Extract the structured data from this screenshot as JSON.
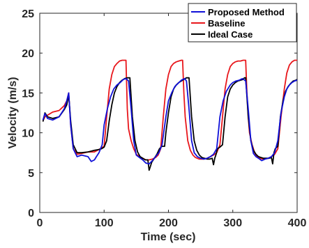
{
  "chart_data": {
    "type": "line",
    "title": "",
    "xlabel": "Time (sec)",
    "ylabel": "Velocity (m/s)",
    "xlim": [
      0,
      400
    ],
    "ylim": [
      0,
      25
    ],
    "xticks": [
      "0",
      "100",
      "200",
      "300",
      "400"
    ],
    "yticks": [
      "0",
      "5",
      "10",
      "15",
      "20",
      "25"
    ],
    "grid": false,
    "legend_position": "top-right",
    "series": [
      {
        "name": "Proposed Method",
        "color": "#1010d8",
        "x": [
          5,
          8,
          12,
          20,
          30,
          38,
          42,
          45,
          48,
          52,
          58,
          65,
          75,
          80,
          85,
          88,
          92,
          97,
          100,
          105,
          110,
          115,
          120,
          125,
          130,
          134,
          138,
          142,
          146,
          150,
          155,
          160,
          165,
          170,
          175,
          180,
          185,
          190,
          196,
          200,
          205,
          210,
          215,
          220,
          225,
          228,
          232,
          236,
          240,
          245,
          250,
          255,
          260,
          265,
          270,
          275,
          280,
          285,
          290,
          296,
          300,
          305,
          310,
          315,
          320,
          324,
          328,
          332,
          336,
          340,
          345,
          350,
          355,
          360,
          365,
          370,
          375,
          380,
          384,
          388,
          392,
          396,
          400
        ],
        "y": [
          11.6,
          12.4,
          11.8,
          11.6,
          12.0,
          13.0,
          14.0,
          15.0,
          11.0,
          8.0,
          7.0,
          7.2,
          7.0,
          6.4,
          6.6,
          7.0,
          7.5,
          8.5,
          11.0,
          13.0,
          14.5,
          15.5,
          16.0,
          16.3,
          16.7,
          16.8,
          16.5,
          13.0,
          9.0,
          7.2,
          6.9,
          6.6,
          6.2,
          6.1,
          6.5,
          7.0,
          7.5,
          8.5,
          12.0,
          14.0,
          15.0,
          15.8,
          16.2,
          16.6,
          16.8,
          16.5,
          13.0,
          9.0,
          7.5,
          7.0,
          6.8,
          6.7,
          6.8,
          7.0,
          7.3,
          8.0,
          12.0,
          14.0,
          15.2,
          16.0,
          16.3,
          16.5,
          16.6,
          16.8,
          16.5,
          13.0,
          9.0,
          7.4,
          7.0,
          6.8,
          6.5,
          6.7,
          6.8,
          7.0,
          7.5,
          9.0,
          12.5,
          14.5,
          15.5,
          16.0,
          16.3,
          16.5,
          16.6
        ]
      },
      {
        "name": "Baseline",
        "color": "#e8161b",
        "x": [
          5,
          8,
          12,
          20,
          30,
          38,
          42,
          45,
          48,
          52,
          58,
          65,
          75,
          85,
          92,
          96,
          100,
          104,
          108,
          112,
          116,
          120,
          124,
          128,
          132,
          134,
          136,
          138,
          142,
          146,
          150,
          155,
          160,
          165,
          170,
          175,
          180,
          184,
          188,
          192,
          196,
          200,
          204,
          208,
          212,
          216,
          220,
          222,
          224,
          226,
          230,
          234,
          238,
          242,
          248,
          255,
          260,
          265,
          270,
          275,
          280,
          284,
          288,
          292,
          296,
          300,
          304,
          308,
          312,
          316,
          320,
          322,
          324,
          326,
          330,
          334,
          338,
          342,
          348,
          355,
          360,
          365,
          370,
          375,
          380,
          384,
          388,
          392,
          396,
          400
        ],
        "y": [
          11.5,
          12.0,
          12.2,
          12.6,
          12.8,
          13.4,
          14.0,
          15.0,
          11.0,
          8.0,
          7.3,
          7.4,
          7.6,
          7.6,
          7.9,
          8.1,
          8.3,
          12.0,
          15.5,
          17.3,
          18.3,
          18.7,
          19.0,
          19.1,
          19.1,
          19.1,
          13.0,
          10.5,
          9.0,
          8.0,
          7.3,
          7.0,
          6.8,
          6.6,
          6.6,
          6.7,
          6.9,
          7.2,
          8.0,
          12.0,
          15.5,
          17.3,
          18.3,
          18.7,
          18.9,
          19.0,
          19.1,
          19.1,
          15.0,
          12.0,
          9.0,
          7.8,
          7.2,
          6.9,
          6.7,
          6.7,
          6.8,
          7.0,
          7.2,
          7.5,
          8.5,
          12.0,
          15.5,
          17.3,
          18.3,
          18.7,
          18.9,
          19.0,
          19.0,
          19.1,
          19.1,
          15.0,
          12.0,
          10.0,
          8.5,
          7.5,
          7.0,
          6.8,
          6.7,
          6.8,
          7.0,
          7.3,
          8.0,
          12.0,
          15.5,
          17.5,
          18.5,
          18.9,
          19.1,
          19.1
        ]
      },
      {
        "name": "Ideal Case",
        "color": "#000000",
        "x": [
          5,
          8,
          12,
          20,
          30,
          38,
          42,
          45,
          48,
          52,
          58,
          65,
          75,
          85,
          92,
          96,
          100,
          104,
          108,
          112,
          116,
          120,
          124,
          128,
          132,
          136,
          140,
          144,
          148,
          152,
          156,
          160,
          164,
          168,
          170,
          172,
          174,
          178,
          182,
          186,
          190,
          194,
          196,
          200,
          204,
          208,
          212,
          216,
          220,
          224,
          228,
          232,
          236,
          240,
          244,
          248,
          252,
          256,
          260,
          264,
          268,
          270,
          272,
          274,
          276,
          280,
          284,
          288,
          292,
          296,
          300,
          304,
          308,
          312,
          316,
          318,
          320,
          324,
          328,
          332,
          336,
          340,
          344,
          348,
          352,
          356,
          360,
          362,
          364,
          366,
          370,
          374,
          378,
          382,
          386,
          390,
          394,
          398,
          400
        ],
        "y": [
          11.4,
          12.5,
          12.0,
          11.8,
          12.0,
          12.9,
          13.5,
          14.8,
          11.5,
          8.5,
          7.5,
          7.5,
          7.6,
          7.8,
          7.9,
          8.0,
          8.2,
          9.0,
          11.5,
          13.5,
          15.0,
          15.8,
          16.3,
          16.6,
          16.8,
          16.9,
          16.9,
          12.0,
          9.0,
          7.6,
          7.0,
          6.8,
          6.6,
          6.6,
          5.3,
          5.8,
          6.3,
          6.8,
          7.3,
          8.0,
          8.3,
          8.3,
          10.0,
          12.5,
          14.5,
          15.5,
          16.0,
          16.3,
          16.5,
          16.7,
          16.9,
          16.9,
          12.0,
          9.0,
          7.8,
          7.2,
          6.9,
          6.8,
          6.7,
          6.7,
          6.8,
          6.0,
          6.8,
          7.3,
          8.0,
          8.2,
          8.5,
          12.0,
          14.5,
          15.5,
          16.0,
          16.3,
          16.5,
          16.6,
          16.7,
          16.9,
          16.9,
          12.0,
          9.0,
          7.8,
          7.3,
          7.0,
          6.9,
          6.8,
          6.8,
          6.8,
          6.9,
          6.1,
          7.5,
          8.0,
          8.3,
          12.0,
          14.0,
          15.2,
          15.8,
          16.2,
          16.5,
          16.6,
          16.7
        ]
      }
    ]
  }
}
